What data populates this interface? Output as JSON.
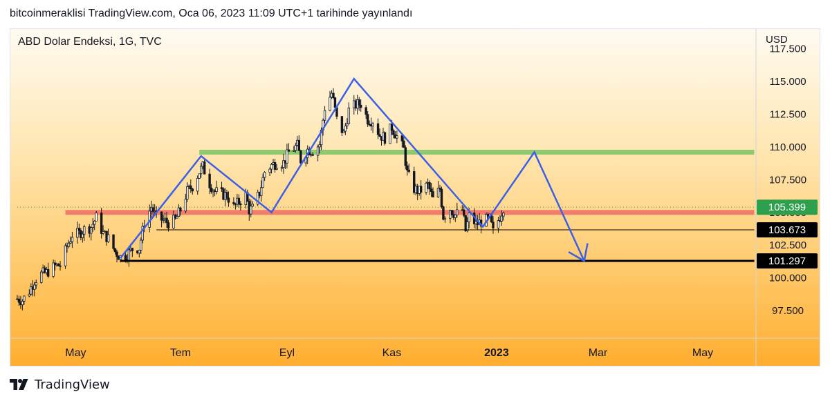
{
  "header": {
    "caption": "bitcoinmeraklisi TradingView.com, Oca 06, 2023 11:09 UTC+1 tarihinde yayınlandı"
  },
  "symbol_label": "ABD Dolar Endeksi, 1G, TVC",
  "currency": "USD",
  "footer": {
    "brand": "TradingView",
    "logo_icon": "tradingview-logo-icon"
  },
  "colors": {
    "candle": "#131722",
    "pattern_line": "#3b5fe6",
    "resistance_zone": "#8fc86e",
    "support_zone": "#f47c6b",
    "price_badge_last": "#2e9f4c",
    "price_badge_level": "#000000"
  },
  "chart_data": {
    "type": "candlestick",
    "title": "ABD Dolar Endeksi, 1G, TVC",
    "y_axis": {
      "unit": "USD",
      "range": [
        95.4,
        119.0
      ],
      "ticks": [
        "117.500",
        "115.000",
        "112.500",
        "110.000",
        "107.500",
        "105.000",
        "102.500",
        "100.000",
        "97.500"
      ],
      "position": "right"
    },
    "x_axis": {
      "ticks": [
        {
          "label": "May",
          "date": "2022-05-01",
          "bold": false
        },
        {
          "label": "Tem",
          "date": "2022-07-01",
          "bold": false
        },
        {
          "label": "Eyl",
          "date": "2022-09-01",
          "bold": false
        },
        {
          "label": "Kas",
          "date": "2022-11-01",
          "bold": false
        },
        {
          "label": "2023",
          "date": "2023-01-01",
          "bold": true
        },
        {
          "label": "Mar",
          "date": "2023-03-01",
          "bold": false
        },
        {
          "label": "May",
          "date": "2023-05-01",
          "bold": false
        }
      ]
    },
    "close_series": [
      [
        "2022-03-28",
        98.4
      ],
      [
        "2022-03-31",
        98.3
      ],
      [
        "2022-04-04",
        99.0
      ],
      [
        "2022-04-07",
        99.8
      ],
      [
        "2022-04-11",
        100.3
      ],
      [
        "2022-04-14",
        100.4
      ],
      [
        "2022-04-19",
        100.9
      ],
      [
        "2022-04-22",
        101.0
      ],
      [
        "2022-04-26",
        102.4
      ],
      [
        "2022-04-29",
        103.3
      ],
      [
        "2022-05-03",
        103.4
      ],
      [
        "2022-05-06",
        103.7
      ],
      [
        "2022-05-10",
        103.9
      ],
      [
        "2022-05-13",
        104.6
      ],
      [
        "2022-05-17",
        103.4
      ],
      [
        "2022-05-20",
        103.0
      ],
      [
        "2022-05-24",
        102.0
      ],
      [
        "2022-05-27",
        101.6
      ],
      [
        "2022-05-31",
        101.8
      ],
      [
        "2022-06-03",
        102.2
      ],
      [
        "2022-06-07",
        102.3
      ],
      [
        "2022-06-10",
        104.2
      ],
      [
        "2022-06-14",
        105.4
      ],
      [
        "2022-06-17",
        104.6
      ],
      [
        "2022-06-21",
        104.4
      ],
      [
        "2022-06-24",
        104.2
      ],
      [
        "2022-06-28",
        104.4
      ],
      [
        "2022-07-01",
        105.2
      ],
      [
        "2022-07-05",
        106.6
      ],
      [
        "2022-07-08",
        107.0
      ],
      [
        "2022-07-12",
        108.1
      ],
      [
        "2022-07-14",
        108.5
      ],
      [
        "2022-07-18",
        107.2
      ],
      [
        "2022-07-21",
        106.6
      ],
      [
        "2022-07-25",
        106.4
      ],
      [
        "2022-07-28",
        106.3
      ],
      [
        "2022-08-01",
        105.4
      ],
      [
        "2022-08-04",
        105.8
      ],
      [
        "2022-08-08",
        106.3
      ],
      [
        "2022-08-10",
        105.2
      ],
      [
        "2022-08-12",
        105.3
      ],
      [
        "2022-08-16",
        106.5
      ],
      [
        "2022-08-19",
        108.1
      ],
      [
        "2022-08-23",
        108.6
      ],
      [
        "2022-08-26",
        108.8
      ],
      [
        "2022-08-30",
        108.8
      ],
      [
        "2022-09-02",
        109.6
      ],
      [
        "2022-09-07",
        110.1
      ],
      [
        "2022-09-09",
        109.0
      ],
      [
        "2022-09-13",
        109.8
      ],
      [
        "2022-09-16",
        109.7
      ],
      [
        "2022-09-20",
        110.2
      ],
      [
        "2022-09-23",
        113.0
      ],
      [
        "2022-09-27",
        114.1
      ],
      [
        "2022-09-28",
        113.5
      ],
      [
        "2022-09-30",
        112.1
      ],
      [
        "2022-10-04",
        111.0
      ],
      [
        "2022-10-07",
        112.8
      ],
      [
        "2022-10-11",
        113.2
      ],
      [
        "2022-10-14",
        113.3
      ],
      [
        "2022-10-18",
        112.1
      ],
      [
        "2022-10-21",
        112.0
      ],
      [
        "2022-10-25",
        110.9
      ],
      [
        "2022-10-28",
        110.7
      ],
      [
        "2022-11-01",
        111.5
      ],
      [
        "2022-11-04",
        110.8
      ],
      [
        "2022-11-08",
        109.8
      ],
      [
        "2022-11-10",
        108.0
      ],
      [
        "2022-11-14",
        106.8
      ],
      [
        "2022-11-17",
        106.6
      ],
      [
        "2022-11-22",
        107.1
      ],
      [
        "2022-11-25",
        106.0
      ],
      [
        "2022-11-29",
        106.8
      ],
      [
        "2022-12-01",
        104.7
      ],
      [
        "2022-12-05",
        105.3
      ],
      [
        "2022-12-08",
        104.8
      ],
      [
        "2022-12-12",
        105.2
      ],
      [
        "2022-12-14",
        103.6
      ],
      [
        "2022-12-16",
        104.7
      ],
      [
        "2022-12-20",
        104.1
      ],
      [
        "2022-12-23",
        104.3
      ],
      [
        "2022-12-28",
        104.5
      ],
      [
        "2022-12-30",
        103.5
      ],
      [
        "2023-01-03",
        104.7
      ],
      [
        "2023-01-05",
        105.4
      ]
    ],
    "last_price": "105.399",
    "annotations": {
      "price_labels": [
        "105.399",
        "103.673",
        "101.297"
      ],
      "support_line_101_297": {
        "value": 101.297,
        "from": "2022-05-27",
        "to": "2023-05-31"
      },
      "line_103_673": {
        "value": 103.673,
        "from": "2022-06-17",
        "to": "2023-05-31"
      },
      "resistance_zone": {
        "value": 109.6,
        "from": "2022-07-12",
        "to": "2023-05-31"
      },
      "support_zone": {
        "value": 105.0,
        "from": "2022-04-25",
        "to": "2023-05-31"
      },
      "last_price_dotted": {
        "value": 105.399,
        "from": "2022-03-28"
      },
      "pattern_path": [
        [
          "2022-05-27",
          101.5
        ],
        [
          "2022-07-13",
          109.3
        ],
        [
          "2022-08-23",
          105.0
        ],
        [
          "2022-10-10",
          115.2
        ],
        [
          "2022-12-24",
          103.9
        ],
        [
          "2023-01-23",
          109.6
        ],
        [
          "2023-02-21",
          101.3
        ]
      ],
      "arrow_head": "down"
    }
  }
}
